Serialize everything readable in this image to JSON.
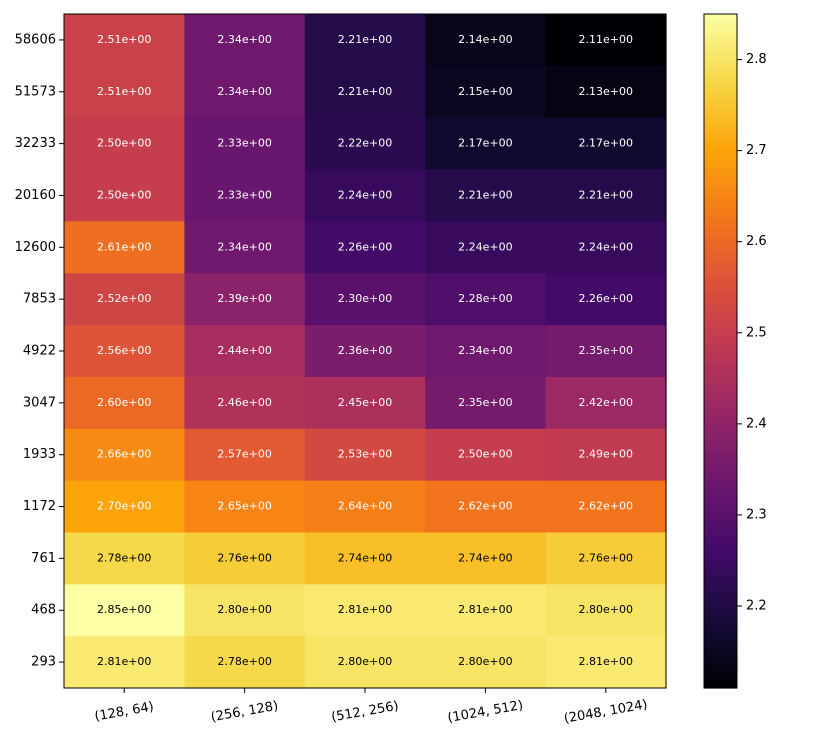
{
  "chart_data": {
    "type": "heatmap",
    "colormap": "inferno",
    "title": "",
    "xlabel": "",
    "ylabel": "",
    "x_categories": [
      "(128, 64)",
      "(256, 128)",
      "(512, 256)",
      "(1024, 512)",
      "(2048, 1024)"
    ],
    "y_categories": [
      "58606",
      "51573",
      "32233",
      "20160",
      "12600",
      "7853",
      "4922",
      "3047",
      "1933",
      "1172",
      "761",
      "468",
      "293"
    ],
    "values": [
      [
        2.51,
        2.34,
        2.21,
        2.14,
        2.11
      ],
      [
        2.51,
        2.34,
        2.21,
        2.15,
        2.13
      ],
      [
        2.5,
        2.33,
        2.22,
        2.17,
        2.17
      ],
      [
        2.5,
        2.33,
        2.24,
        2.21,
        2.21
      ],
      [
        2.61,
        2.34,
        2.26,
        2.24,
        2.24
      ],
      [
        2.52,
        2.39,
        2.3,
        2.28,
        2.26
      ],
      [
        2.56,
        2.44,
        2.36,
        2.34,
        2.35
      ],
      [
        2.6,
        2.46,
        2.45,
        2.35,
        2.42
      ],
      [
        2.66,
        2.57,
        2.53,
        2.5,
        2.49
      ],
      [
        2.7,
        2.65,
        2.64,
        2.62,
        2.62
      ],
      [
        2.78,
        2.76,
        2.74,
        2.74,
        2.76
      ],
      [
        2.85,
        2.8,
        2.81,
        2.81,
        2.8
      ],
      [
        2.81,
        2.78,
        2.8,
        2.8,
        2.81
      ]
    ],
    "cell_labels": [
      [
        "2.51e+00",
        "2.34e+00",
        "2.21e+00",
        "2.14e+00",
        "2.11e+00"
      ],
      [
        "2.51e+00",
        "2.34e+00",
        "2.21e+00",
        "2.15e+00",
        "2.13e+00"
      ],
      [
        "2.50e+00",
        "2.33e+00",
        "2.22e+00",
        "2.17e+00",
        "2.17e+00"
      ],
      [
        "2.50e+00",
        "2.33e+00",
        "2.24e+00",
        "2.21e+00",
        "2.21e+00"
      ],
      [
        "2.61e+00",
        "2.34e+00",
        "2.26e+00",
        "2.24e+00",
        "2.24e+00"
      ],
      [
        "2.52e+00",
        "2.39e+00",
        "2.30e+00",
        "2.28e+00",
        "2.26e+00"
      ],
      [
        "2.56e+00",
        "2.44e+00",
        "2.36e+00",
        "2.34e+00",
        "2.35e+00"
      ],
      [
        "2.60e+00",
        "2.46e+00",
        "2.45e+00",
        "2.35e+00",
        "2.42e+00"
      ],
      [
        "2.66e+00",
        "2.57e+00",
        "2.53e+00",
        "2.50e+00",
        "2.49e+00"
      ],
      [
        "2.70e+00",
        "2.65e+00",
        "2.64e+00",
        "2.62e+00",
        "2.62e+00"
      ],
      [
        "2.78e+00",
        "2.76e+00",
        "2.74e+00",
        "2.74e+00",
        "2.76e+00"
      ],
      [
        "2.85e+00",
        "2.80e+00",
        "2.81e+00",
        "2.81e+00",
        "2.80e+00"
      ],
      [
        "2.81e+00",
        "2.78e+00",
        "2.80e+00",
        "2.80e+00",
        "2.81e+00"
      ]
    ],
    "colorbar": {
      "min": 2.11,
      "max": 2.85,
      "ticks": [
        2.2,
        2.3,
        2.4,
        2.5,
        2.6,
        2.7,
        2.8
      ],
      "tick_labels": [
        "2.2",
        "2.3",
        "2.4",
        "2.5",
        "2.6",
        "2.7",
        "2.8"
      ]
    },
    "annotation_colors": {
      "light_text": "#ffffff",
      "dark_text": "#000000",
      "threshold": 2.72
    }
  }
}
